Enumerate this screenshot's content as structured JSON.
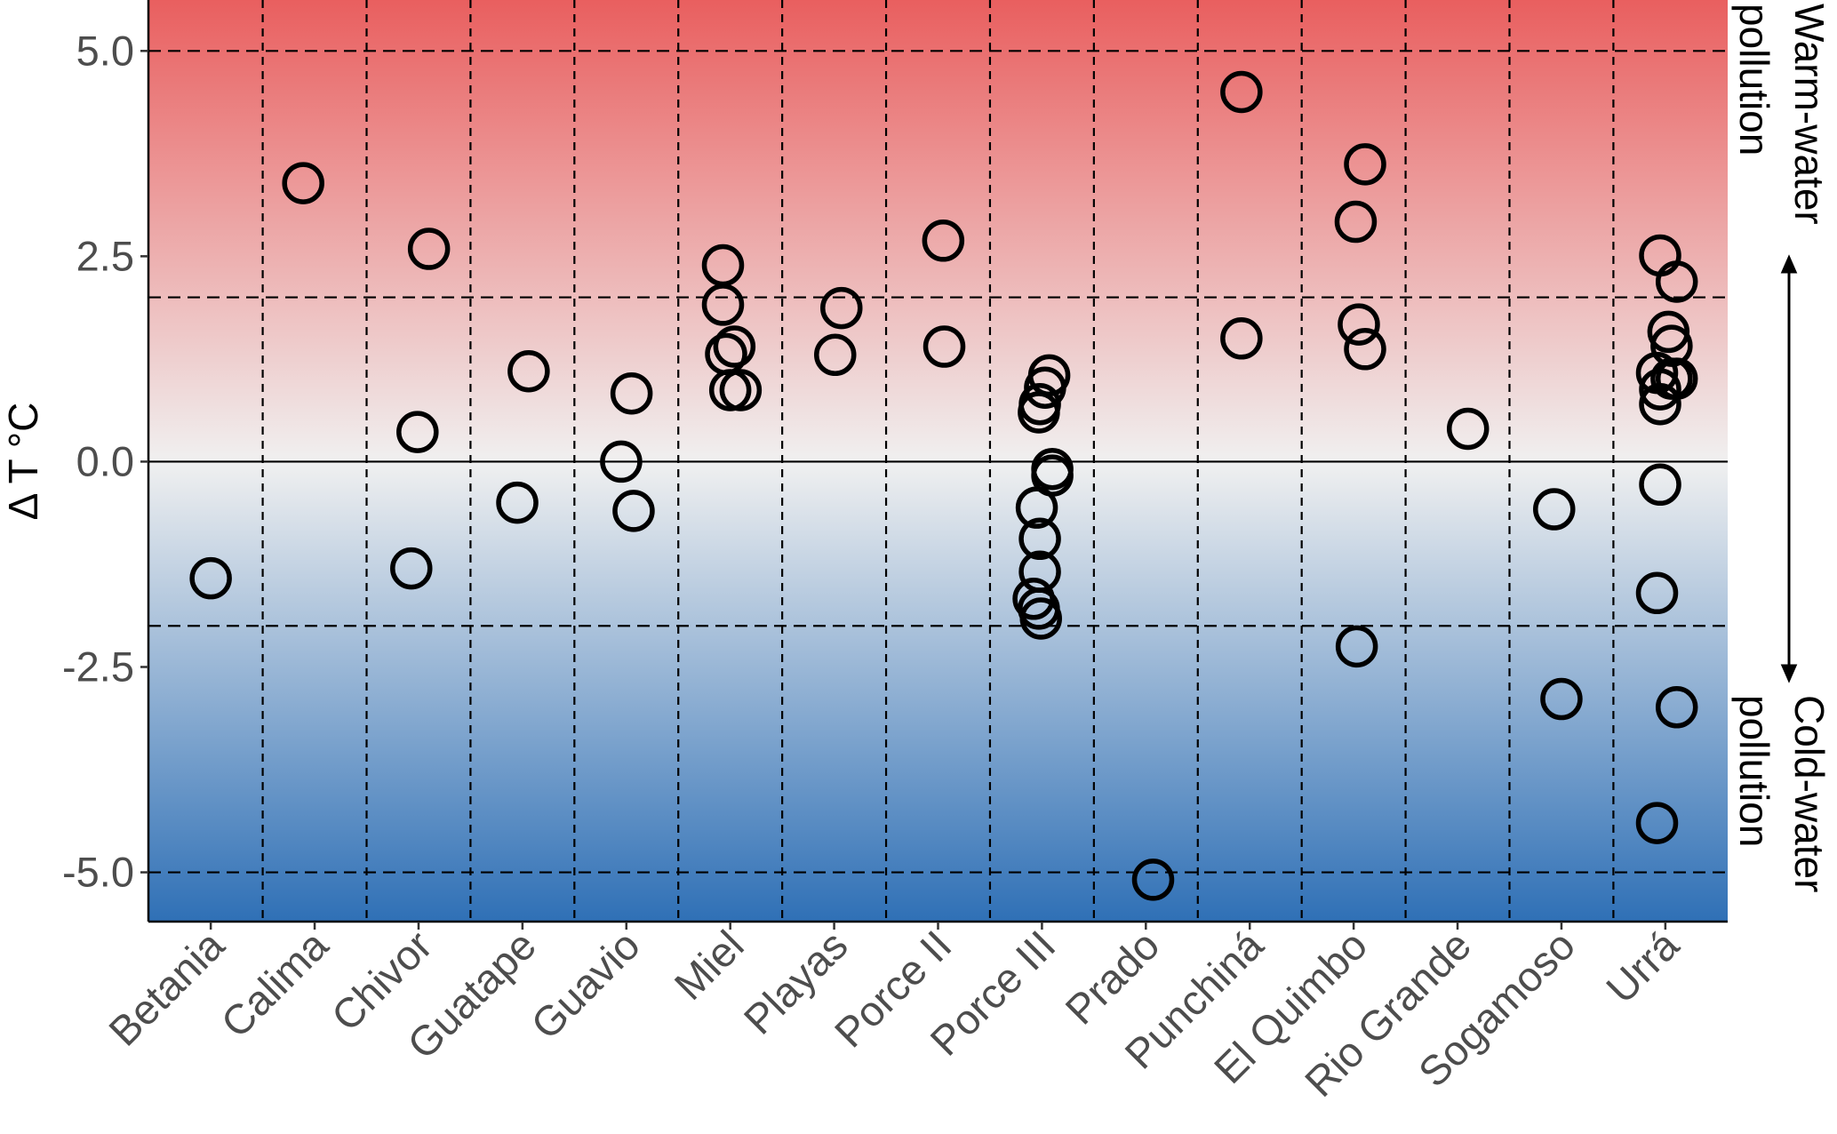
{
  "chart_data": {
    "type": "scatter",
    "title": "",
    "xlabel": "",
    "ylabel": "Δ T °C",
    "ylim": [
      -5.6,
      5.62
    ],
    "yticks": [
      -5.0,
      -2.5,
      0.0,
      2.5,
      5.0
    ],
    "ytick_labels": [
      "-5.0",
      "-2.5",
      "0.0",
      "2.5",
      "5.0"
    ],
    "reference_lines_dashed": [
      5,
      2,
      -2,
      -5
    ],
    "reference_line_solid": 0,
    "grid": "dashed category separators",
    "colors": {
      "warm": "#e95f5f",
      "neutral": "#f0f0f0",
      "cold": "#2f70b6",
      "marker": "#000000"
    },
    "annotations": {
      "warm": [
        "Warm-water",
        "pollution"
      ],
      "cold": [
        "Cold-water",
        "pollution"
      ]
    },
    "categories": [
      "Betania",
      "Calima",
      "Chivor",
      "Guatape",
      "Guavio",
      "Miel",
      "Playas",
      "Porce II",
      "Porce III",
      "Prado",
      "Punchiná",
      "El Quimbo",
      "Rio Grande",
      "Sogamoso",
      "Urrá"
    ],
    "points": [
      {
        "site": "Betania",
        "values": [
          -1.42
        ],
        "jitter": [
          0
        ]
      },
      {
        "site": "Calima",
        "values": [
          3.39
        ],
        "jitter": [
          -0.11
        ]
      },
      {
        "site": "Chivor",
        "values": [
          2.59,
          0.36,
          -1.3
        ],
        "jitter": [
          0.1,
          -0.01,
          -0.07
        ]
      },
      {
        "site": "Guatape",
        "values": [
          1.1,
          -0.5
        ],
        "jitter": [
          0.06,
          -0.05
        ]
      },
      {
        "site": "Guavio",
        "values": [
          0.83,
          0.0,
          -0.6
        ],
        "jitter": [
          0.05,
          -0.05,
          0.07
        ]
      },
      {
        "site": "Miel",
        "values": [
          2.39,
          1.91,
          1.4,
          1.31,
          0.87,
          0.87
        ],
        "jitter": [
          -0.07,
          -0.07,
          0.04,
          -0.04,
          0,
          0.1
        ]
      },
      {
        "site": "Playas",
        "values": [
          1.87,
          1.3
        ],
        "jitter": [
          0.07,
          0.01
        ]
      },
      {
        "site": "Porce II",
        "values": [
          2.69,
          1.4
        ],
        "jitter": [
          0.05,
          0.06
        ]
      },
      {
        "site": "Porce III",
        "values": [
          1.05,
          0.9,
          0.7,
          0.6,
          -0.09,
          -0.17,
          -0.56,
          -0.94,
          -1.34,
          -1.67,
          -1.79,
          -1.91
        ],
        "jitter": [
          0.07,
          0.03,
          -0.02,
          -0.03,
          0.1,
          0.1,
          -0.05,
          -0.02,
          -0.02,
          -0.08,
          -0.03,
          -0.01
        ]
      },
      {
        "site": "Prado",
        "values": [
          -5.09
        ],
        "jitter": [
          0.07
        ]
      },
      {
        "site": "Punchiná",
        "values": [
          4.5,
          1.5
        ],
        "jitter": [
          -0.08,
          -0.08
        ]
      },
      {
        "site": "El Quimbo",
        "values": [
          3.62,
          2.92,
          1.67,
          1.37,
          -2.25
        ],
        "jitter": [
          0.11,
          0.02,
          0.05,
          0.11,
          0.03
        ]
      },
      {
        "site": "Rio Grande",
        "values": [
          0.4
        ],
        "jitter": [
          0.1
        ]
      },
      {
        "site": "Sogamoso",
        "values": [
          -0.58,
          -2.89
        ],
        "jitter": [
          -0.07,
          0
        ]
      },
      {
        "site": "Urrá",
        "values": [
          2.51,
          2.19,
          1.58,
          1.41,
          1.08,
          1.01,
          1.01,
          0.88,
          0.7,
          -0.28,
          -1.6,
          -2.99,
          -4.4
        ],
        "jitter": [
          -0.05,
          0.11,
          0.03,
          0.06,
          -0.08,
          0.06,
          0.11,
          -0.05,
          -0.05,
          -0.05,
          -0.08,
          0.11,
          -0.08
        ]
      }
    ]
  }
}
